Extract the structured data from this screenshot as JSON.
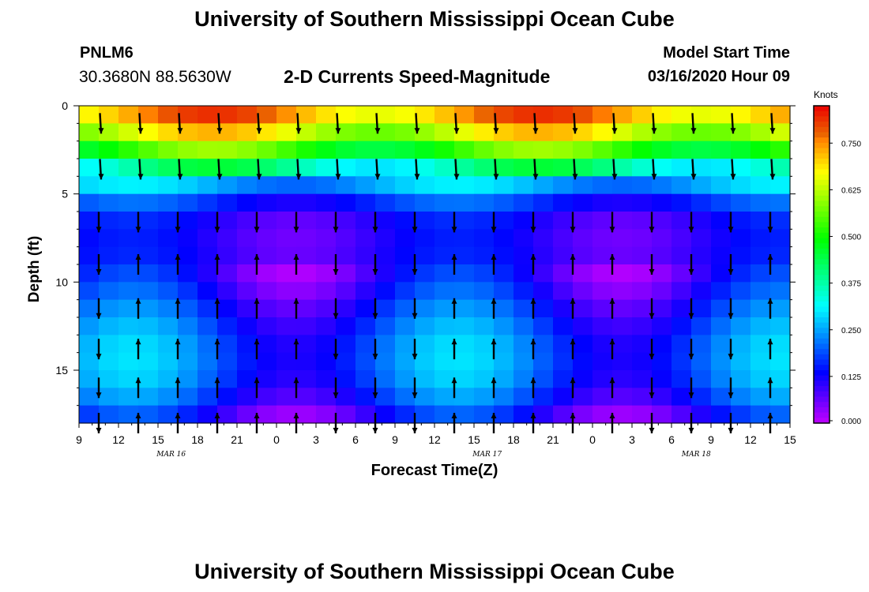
{
  "header": {
    "title": "University of Southern Mississippi Ocean Cube",
    "station_id": "PNLM6",
    "coords": "30.3680N 88.5630W",
    "subtitle": "2-D Currents Speed-Magnitude",
    "start_label": "Model Start Time",
    "start_value": "03/16/2020 Hour 09"
  },
  "footer": {
    "title": "University of Southern Mississippi Ocean Cube"
  },
  "chart_data": {
    "type": "heatmap",
    "title": "2-D Currents Speed-Magnitude",
    "xlabel": "Forecast Time(Z)",
    "ylabel": "Depth (ft)",
    "x_ticks": [
      "9",
      "12",
      "15",
      "18",
      "21",
      "0",
      "3",
      "6",
      "9",
      "12",
      "15",
      "18",
      "21",
      "0",
      "3",
      "6",
      "9",
      "12",
      "15"
    ],
    "date_labels": [
      "MAR 16",
      "MAR 17",
      "MAR 18"
    ],
    "y_ticks": [
      "0",
      "5",
      "10",
      "15"
    ],
    "ylim": [
      0,
      18
    ],
    "xlim_hours": [
      9,
      63
    ],
    "colorbar": {
      "unit": "Knots",
      "ticks": [
        "0.750",
        "0.625",
        "0.500",
        "0.375",
        "0.250",
        "0.125",
        "0.000"
      ],
      "range": [
        0,
        0.85
      ]
    },
    "depth_profile": [
      {
        "depth": 0,
        "speed": 0.78
      },
      {
        "depth": 2,
        "speed": 0.6
      },
      {
        "depth": 4,
        "speed": 0.3
      },
      {
        "depth": 6,
        "speed": 0.12
      },
      {
        "depth": 8,
        "speed": 0.1
      },
      {
        "depth": 10,
        "speed": 0.14
      },
      {
        "depth": 12,
        "speed": 0.2
      },
      {
        "depth": 14,
        "speed": 0.24
      },
      {
        "depth": 16,
        "speed": 0.22
      },
      {
        "depth": 18,
        "speed": 0.12
      }
    ]
  }
}
